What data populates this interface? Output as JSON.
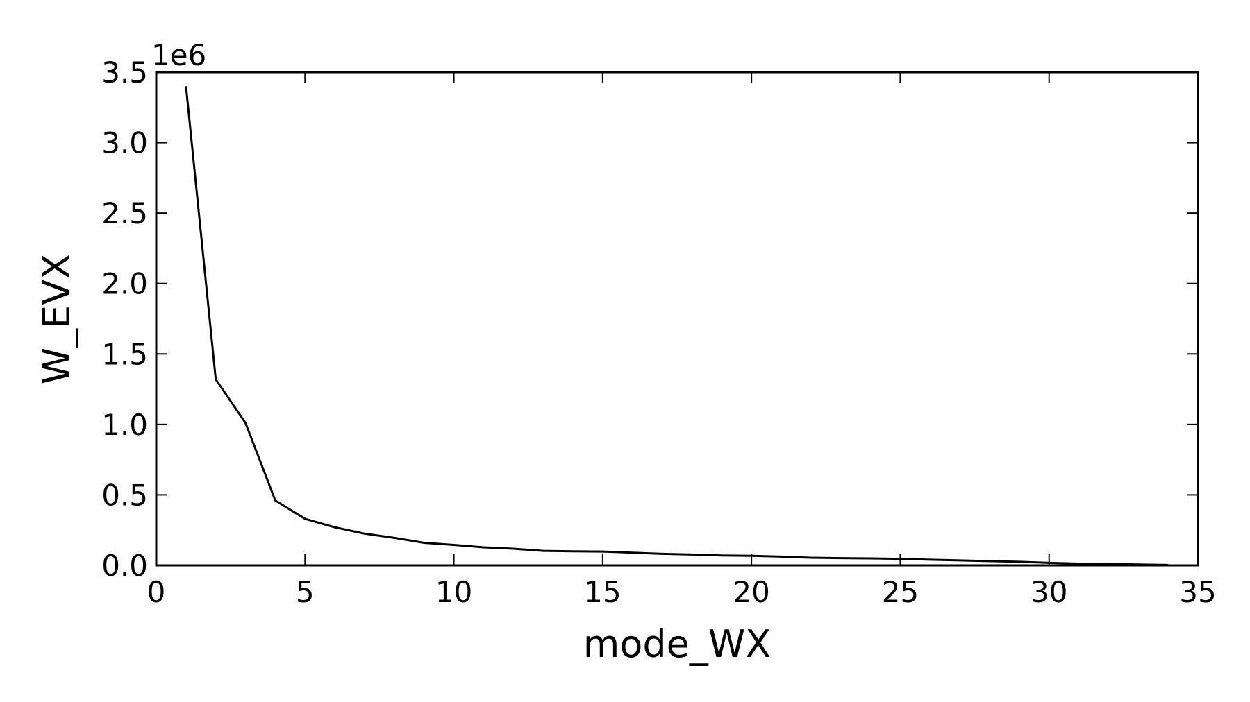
{
  "chart_data": {
    "type": "line",
    "title": "",
    "xlabel": "mode_WX",
    "ylabel": "W_EVX",
    "y_offset_label": "1e6",
    "xlim": [
      0,
      35
    ],
    "ylim": [
      0,
      3500000
    ],
    "x_ticks": [
      0,
      5,
      10,
      15,
      20,
      25,
      30,
      35
    ],
    "x_tick_labels": [
      "0",
      "5",
      "10",
      "15",
      "20",
      "25",
      "30",
      "35"
    ],
    "y_ticks": [
      0,
      500000,
      1000000,
      1500000,
      2000000,
      2500000,
      3000000,
      3500000
    ],
    "y_tick_labels": [
      "0.0",
      "0.5",
      "1.0",
      "1.5",
      "2.0",
      "2.5",
      "3.0",
      "3.5"
    ],
    "grid": false,
    "legend": "none",
    "line_color": "#000000",
    "series": [
      {
        "x": [
          1,
          2,
          3,
          4,
          5,
          6,
          7,
          8,
          9,
          10,
          11,
          12,
          13,
          14,
          15,
          16,
          17,
          18,
          19,
          20,
          21,
          22,
          23,
          24,
          25,
          26,
          27,
          28,
          29,
          30,
          31,
          32,
          33,
          34
        ],
        "values": [
          3400000,
          1320000,
          1010000,
          460000,
          330000,
          270000,
          225000,
          195000,
          160000,
          145000,
          128000,
          118000,
          103000,
          100000,
          98000,
          90000,
          82000,
          77000,
          70000,
          68000,
          62000,
          54000,
          51000,
          49000,
          46000,
          40000,
          35000,
          30000,
          25000,
          18000,
          12000,
          9000,
          6000,
          3000
        ]
      }
    ]
  }
}
